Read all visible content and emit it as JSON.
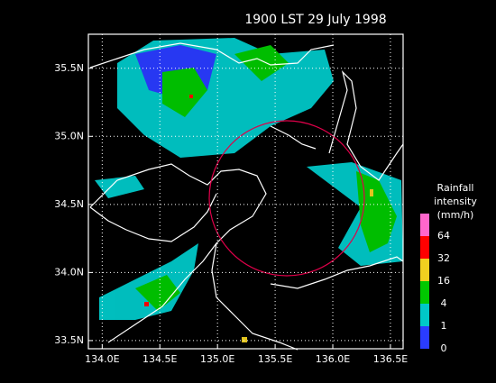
{
  "title": "1900 LST 29 July 1998",
  "xlim": [
    133.88,
    136.61
  ],
  "ylim": [
    33.44,
    35.75
  ],
  "xticks": [
    {
      "value": 134,
      "label": "134.0E"
    },
    {
      "value": 134.5,
      "label": "134.5E"
    },
    {
      "value": 135,
      "label": "135.0E"
    },
    {
      "value": 135.5,
      "label": "135.5E"
    },
    {
      "value": 136,
      "label": "136.0E"
    },
    {
      "value": 136.5,
      "label": "136.5E"
    }
  ],
  "yticks": [
    {
      "value": 33.5,
      "label": "33.5N"
    },
    {
      "value": 34,
      "label": "34.0N"
    },
    {
      "value": 34.5,
      "label": "34.5N"
    },
    {
      "value": 35,
      "label": "35.0N"
    },
    {
      "value": 35.5,
      "label": "35.5N"
    }
  ],
  "grid": true,
  "legend": {
    "title_lines": [
      "Rainfall",
      "intensity",
      "(mm/h)"
    ],
    "levels": [
      0,
      1,
      4,
      16,
      32,
      64
    ],
    "colors": [
      "#2a3cff",
      "#00c8c8",
      "#00c800",
      "#f0d020",
      "#ff0000",
      "#ff66cc"
    ]
  }
}
